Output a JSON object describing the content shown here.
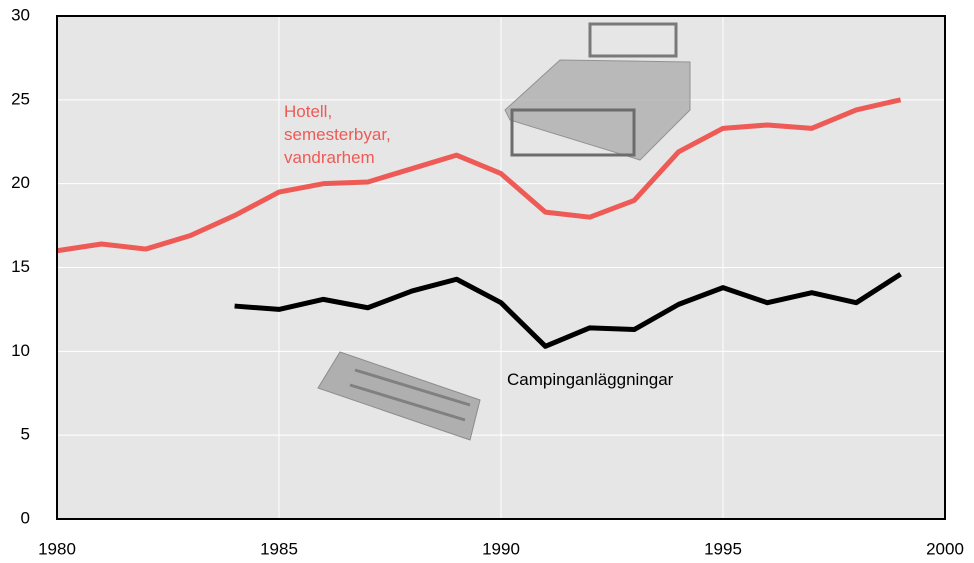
{
  "chart_data": {
    "type": "line",
    "x": [
      1980,
      1981,
      1982,
      1983,
      1984,
      1985,
      1986,
      1987,
      1988,
      1989,
      1990,
      1991,
      1992,
      1993,
      1994,
      1995,
      1996,
      1997,
      1998,
      1999
    ],
    "series": [
      {
        "name": "Hotell,\nsemesterbyar,\nvandrarhem",
        "color": "#ee5a55",
        "values": [
          16.0,
          16.4,
          16.1,
          16.9,
          18.1,
          19.5,
          20.0,
          20.1,
          20.9,
          21.7,
          20.6,
          18.3,
          18.0,
          19.0,
          21.9,
          23.3,
          23.5,
          23.3,
          24.4,
          25.0
        ]
      },
      {
        "name": "Campinganläggningar",
        "color": "#000000",
        "values": [
          null,
          null,
          null,
          null,
          12.7,
          12.5,
          13.1,
          12.6,
          13.6,
          14.3,
          12.9,
          10.3,
          11.4,
          11.3,
          12.8,
          13.8,
          12.9,
          13.5,
          12.9,
          14.6
        ]
      }
    ],
    "xlim": [
      1980,
      2000
    ],
    "xticks": [
      1980,
      1985,
      1990,
      1995,
      2000
    ],
    "ylim": [
      0,
      30
    ],
    "yticks": [
      0,
      5,
      10,
      15,
      20,
      25,
      30
    ],
    "grid": true
  }
}
